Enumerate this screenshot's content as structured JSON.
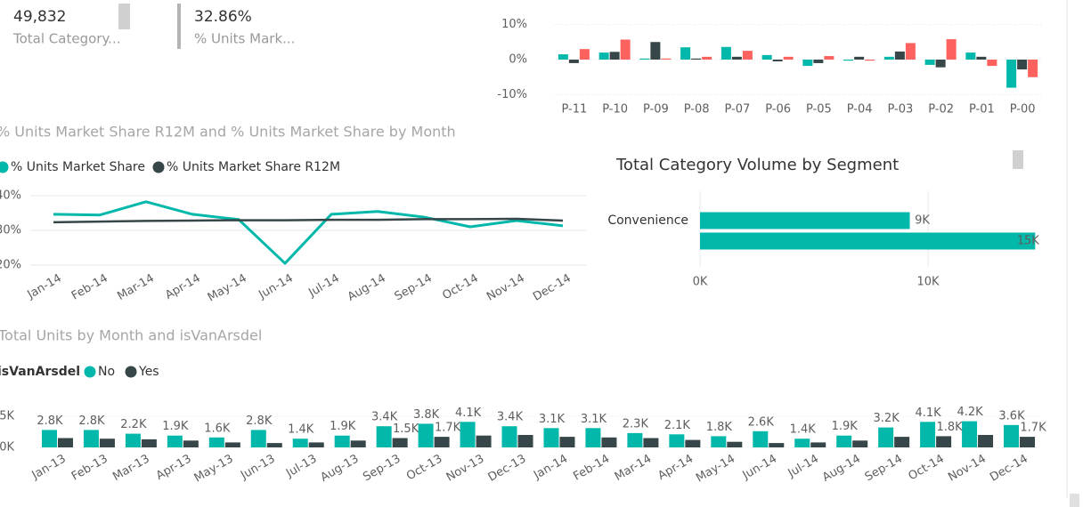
{
  "cards": [
    {
      "value": "49,832",
      "label": "Total Category..."
    },
    {
      "value": "32.86%",
      "label": "% Units Mark..."
    }
  ],
  "chart_data": [
    {
      "type": "bar",
      "categories": [
        "P-11",
        "P-10",
        "P-09",
        "P-08",
        "P-07",
        "P-06",
        "P-05",
        "P-04",
        "P-03",
        "P-02",
        "P-01",
        "P-00"
      ],
      "series": [
        {
          "color": "#01B8AA",
          "values": [
            1.5,
            2,
            0.3,
            3.5,
            3.6,
            1.3,
            -1.8,
            -0.3,
            0.8,
            -1.5,
            2,
            -8
          ]
        },
        {
          "color": "#374649",
          "values": [
            -1,
            2.2,
            5,
            0.3,
            0.8,
            -0.5,
            -1,
            0.8,
            2.3,
            -2.2,
            0.8,
            -2.8
          ]
        },
        {
          "color": "#FD625E",
          "values": [
            3,
            5.7,
            0.3,
            0.8,
            2.5,
            0.8,
            1,
            -0.3,
            4.7,
            5.8,
            -1.8,
            -5
          ]
        }
      ],
      "ylim": [
        -12,
        12
      ],
      "yticks": [
        {
          "value": 10,
          "label": "10%"
        },
        {
          "value": 0,
          "label": "0%"
        },
        {
          "value": -10,
          "label": "-10%"
        }
      ],
      "grid": true
    },
    {
      "type": "line",
      "title": "% Units Market Share R12M and % Units Market Share by Month",
      "categories": [
        "Jan-14",
        "Feb-14",
        "Mar-14",
        "Apr-14",
        "May-14",
        "Jun-14",
        "Jul-14",
        "Aug-14",
        "Sep-14",
        "Oct-14",
        "Nov-14",
        "Dec-14"
      ],
      "series": [
        {
          "name": "% Units Market Share",
          "color": "#01B8AA",
          "values": [
            34.6,
            34.4,
            38.2,
            34.6,
            33.1,
            20.5,
            34.6,
            35.4,
            33.8,
            31.0,
            32.8,
            31.3
          ]
        },
        {
          "name": "% Units Market Share R12M",
          "color": "#374649",
          "values": [
            32.3,
            32.5,
            32.7,
            32.8,
            32.9,
            32.9,
            33.0,
            33.0,
            33.2,
            33.2,
            33.3,
            32.8
          ]
        }
      ],
      "ylim": [
        20,
        42
      ],
      "yticks": [
        {
          "value": 40,
          "label": "40%"
        },
        {
          "value": 30,
          "label": "30%"
        },
        {
          "value": 20,
          "label": "20%"
        }
      ],
      "grid": true
    },
    {
      "type": "bar",
      "orientation": "horizontal",
      "title": "Total Category Volume by Segment",
      "categories": [
        "Convenience",
        null
      ],
      "values": [
        9200,
        14700
      ],
      "value_labels": [
        "9K",
        "15K"
      ],
      "color": "#01B8AA",
      "xlim": [
        0,
        16000
      ],
      "xticks": [
        {
          "value": 0,
          "label": "0K"
        },
        {
          "value": 10000,
          "label": "10K"
        }
      ],
      "grid": true
    },
    {
      "type": "bar",
      "title": "Total Units by Month and isVanArsdel",
      "legend_title": "isVanArsdel",
      "categories": [
        "Jan-13",
        "Feb-13",
        "Mar-13",
        "Apr-13",
        "May-13",
        "Jun-13",
        "Jul-13",
        "Aug-13",
        "Sep-13",
        "Oct-13",
        "Nov-13",
        "Dec-13",
        "Jan-14",
        "Feb-14",
        "Mar-14",
        "Apr-14",
        "May-14",
        "Jun-14",
        "Jul-14",
        "Aug-14",
        "Sep-14",
        "Oct-14",
        "Nov-14",
        "Dec-14"
      ],
      "series": [
        {
          "name": "No",
          "color": "#01B8AA",
          "values": [
            2800,
            2800,
            2200,
            1900,
            1600,
            2800,
            1400,
            1900,
            3400,
            3800,
            4100,
            3400,
            3100,
            3100,
            2300,
            2100,
            1800,
            2600,
            1400,
            1900,
            3200,
            4100,
            4200,
            3600
          ],
          "value_labels": [
            "2.8K",
            "2.8K",
            "2.2K",
            "1.9K",
            "1.6K",
            "2.8K",
            "1.4K",
            "1.9K",
            "3.4K",
            "3.8K",
            "4.1K",
            "3.4K",
            "3.1K",
            "3.1K",
            "2.3K",
            "2.1K",
            "1.8K",
            "2.6K",
            "1.4K",
            "1.9K",
            "3.2K",
            "4.1K",
            "4.2K",
            "3.6K"
          ]
        },
        {
          "name": "Yes",
          "color": "#374649",
          "values": [
            1500,
            1400,
            1300,
            1100,
            800,
            700,
            800,
            1100,
            1500,
            1700,
            1900,
            2000,
            1700,
            1600,
            1500,
            1200,
            900,
            700,
            800,
            1100,
            1700,
            1800,
            2000,
            1700
          ],
          "value_labels": [
            null,
            null,
            null,
            null,
            null,
            null,
            null,
            null,
            "1.5K",
            "1.7K",
            null,
            null,
            null,
            null,
            null,
            null,
            null,
            null,
            null,
            null,
            null,
            "1.8K",
            null,
            "1.7K"
          ]
        }
      ],
      "ylim": [
        0,
        8000
      ],
      "yticks": [
        {
          "value": 5000,
          "label": "5K"
        },
        {
          "value": 0,
          "label": "0K"
        }
      ],
      "grid": true
    }
  ]
}
